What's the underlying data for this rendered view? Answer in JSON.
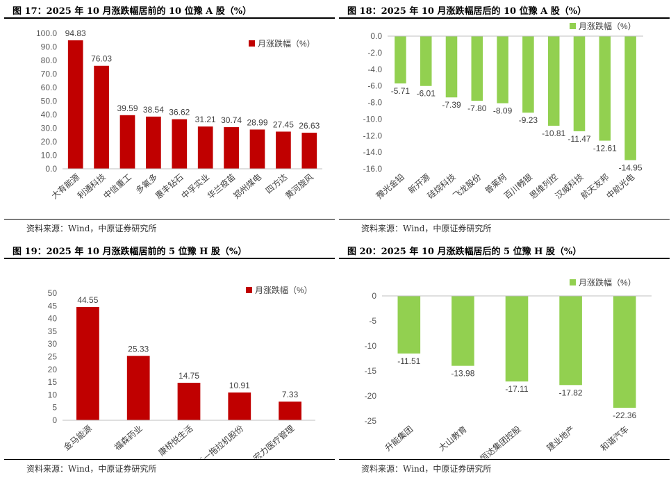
{
  "source_label": "资料来源：Wind，中原证券研究所",
  "chart_data": [
    {
      "id": "fig17",
      "title": "图 17：2025 年 10 月涨跌幅居前的 10 位豫 A 股（%）",
      "type": "bar",
      "legend": "月涨跌幅（%）",
      "legend_position": "top-right",
      "color": "#C00000",
      "ylim": [
        0,
        100
      ],
      "yticks": [
        "0.0",
        "10.0",
        "20.0",
        "30.0",
        "40.0",
        "50.0",
        "60.0",
        "70.0",
        "80.0",
        "90.0",
        "100.0"
      ],
      "categories": [
        "大有能源",
        "利通科技",
        "中信重工",
        "多氟多",
        "惠丰钻石",
        "中孚实业",
        "华兰疫苗",
        "郑州煤电",
        "四方达",
        "黄河旋风"
      ],
      "values": [
        94.83,
        76.03,
        39.59,
        38.54,
        36.62,
        31.21,
        30.74,
        28.99,
        27.45,
        26.63
      ],
      "labels": [
        "94.83",
        "76.03",
        "39.59",
        "38.54",
        "36.62",
        "31.21",
        "30.74",
        "28.99",
        "27.45",
        "26.63"
      ]
    },
    {
      "id": "fig18",
      "title": "图 18：2025 年 10 月涨跌幅居后的 10 位豫 A 股（%）",
      "type": "bar",
      "legend": "月涨跌幅（%）",
      "legend_position": "top-right",
      "color": "#92D050",
      "ylim": [
        -16,
        0
      ],
      "yticks": [
        "-16.0",
        "-14.0",
        "-12.0",
        "-10.0",
        "-8.0",
        "-6.0",
        "-4.0",
        "-2.0",
        "0.0"
      ],
      "categories": [
        "豫光金铅",
        "新开源",
        "硅烷科技",
        "飞龙股份",
        "普莱柯",
        "百川畅银",
        "思维列控",
        "汉威科技",
        "航天友邦",
        "中航光电"
      ],
      "values": [
        -5.71,
        -6.01,
        -7.39,
        -7.8,
        -8.09,
        -9.23,
        -10.81,
        -11.47,
        -12.61,
        -14.95
      ],
      "labels": [
        "-5.71",
        "-6.01",
        "-7.39",
        "-7.80",
        "-8.09",
        "-9.23",
        "-10.81",
        "-11.47",
        "-12.61",
        "-14.95"
      ]
    },
    {
      "id": "fig19",
      "title": "图 19：2025 年 10 月涨跌幅居前的 5 位豫 H 股（%）",
      "type": "bar",
      "legend": "月涨跌幅（%）",
      "legend_position": "top-right",
      "color": "#C00000",
      "ylim": [
        0,
        50
      ],
      "yticks": [
        "0",
        "5",
        "10",
        "15",
        "20",
        "25",
        "30",
        "35",
        "40",
        "45",
        "50"
      ],
      "categories": [
        "金马能源",
        "福森药业",
        "康桥悦生活",
        "第一拖拉机股份",
        "宏力医疗管理"
      ],
      "values": [
        44.55,
        25.33,
        14.75,
        10.91,
        7.33
      ],
      "labels": [
        "44.55",
        "25.33",
        "14.75",
        "10.91",
        "7.33"
      ]
    },
    {
      "id": "fig20",
      "title": "图 20：2025 年 10 月涨跌幅居后的 5 位豫 H 股（%）",
      "type": "bar",
      "legend": "月涨跌幅（%）",
      "legend_position": "top-right",
      "color": "#92D050",
      "ylim": [
        -25,
        0
      ],
      "yticks": [
        "-25",
        "-20",
        "-15",
        "-10",
        "-5",
        "0"
      ],
      "categories": [
        "升能集团",
        "大山教育",
        "恒达集团控股",
        "建业地产",
        "和谐汽车"
      ],
      "values": [
        -11.51,
        -13.98,
        -17.11,
        -17.82,
        -22.36
      ],
      "labels": [
        "-11.51",
        "-13.98",
        "-17.11",
        "-17.82",
        "-22.36"
      ]
    }
  ]
}
